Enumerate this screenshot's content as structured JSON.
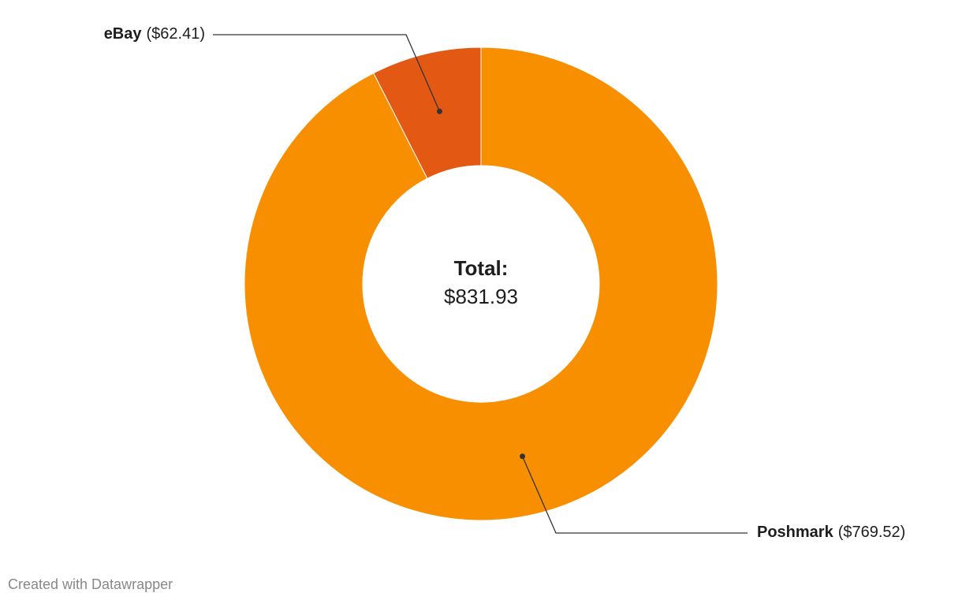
{
  "chart_data": {
    "type": "donut",
    "categories": [
      "Poshmark",
      "eBay"
    ],
    "values": [
      769.52,
      62.41
    ],
    "value_labels": [
      "($769.52)",
      "($62.41)"
    ],
    "colors": [
      "#f78f00",
      "#e35914"
    ],
    "center_label": {
      "title": "Total:",
      "value": "$831.93"
    }
  },
  "footer": "Created with Datawrapper"
}
